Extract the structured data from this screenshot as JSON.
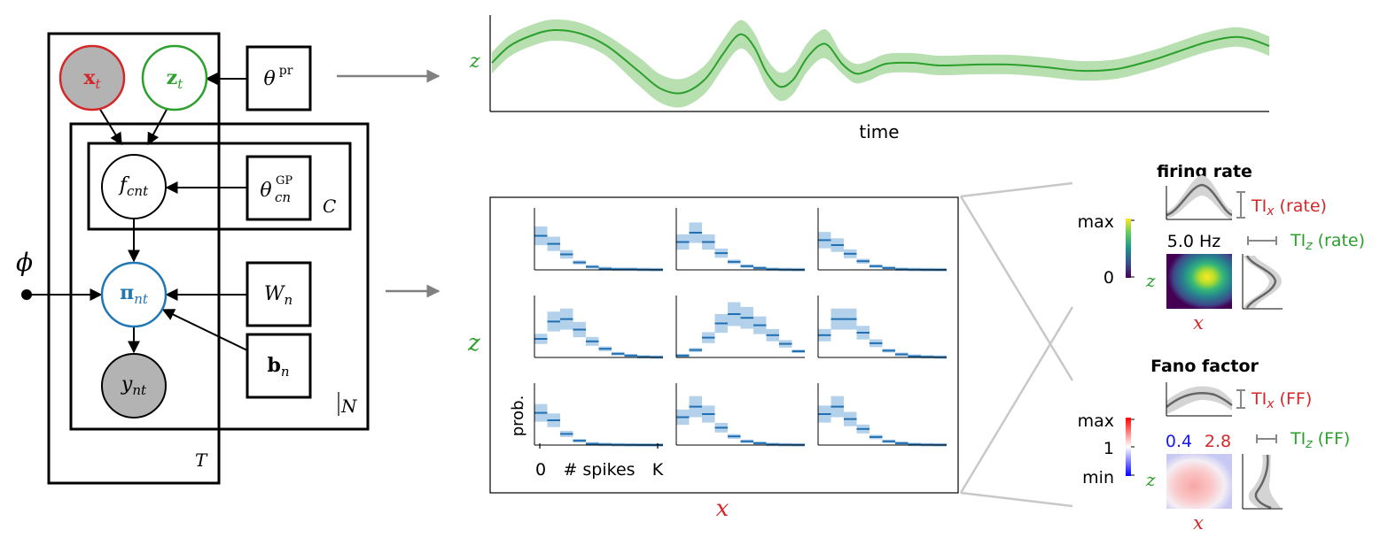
{
  "graphical_model": {
    "nodes": {
      "x": {
        "sym": "x",
        "sub": "t"
      },
      "z": {
        "sym": "z",
        "sub": "t"
      },
      "theta_pr": {
        "sym": "θ",
        "sup": "pr"
      },
      "f": {
        "sym": "f",
        "sub": "cnt"
      },
      "theta_gp": {
        "sym": "θ",
        "sup": "GP",
        "sub": "cn"
      },
      "pi": {
        "sym": "π",
        "sub": "nt"
      },
      "W": {
        "sym": "W",
        "sub": "n"
      },
      "b": {
        "sym": "b",
        "sub": "n"
      },
      "y": {
        "sym": "y",
        "sub": "nt"
      },
      "phi": {
        "sym": "ϕ"
      }
    },
    "plates": {
      "T": "T",
      "C": "C",
      "N": "N"
    }
  },
  "latent_plot": {
    "ylabel": "z",
    "xlabel": "time"
  },
  "grid_plot": {
    "ylabel": "z",
    "xlabel": "x",
    "cell_ylabel": "prob.",
    "tick_zero": "0",
    "tick_mid": "# spikes",
    "tick_k": "K"
  },
  "firing_rate": {
    "title": "firing rate",
    "colorbar_max": "max",
    "colorbar_min": "0",
    "rate_value": "5.0 Hz",
    "z_label": "z",
    "x_label": "x",
    "ti_x_sym": "TI",
    "ti_x_sub": "x",
    "ti_x_note": " (rate)",
    "ti_z_sym": "TI",
    "ti_z_sub": "z",
    "ti_z_note": " (rate)"
  },
  "fano_factor": {
    "title": "Fano factor",
    "colorbar_max": "max",
    "colorbar_mid": "1",
    "colorbar_min": "min",
    "ff_low": "0.4",
    "ff_high": "2.8",
    "z_label": "z",
    "x_label": "x",
    "ti_x_sym": "TI",
    "ti_x_sub": "x",
    "ti_x_note": " (FF)",
    "ti_z_sym": "TI",
    "ti_z_sub": "z",
    "ti_z_note": " (FF)"
  },
  "colors": {
    "x_red": "#d62728",
    "z_green": "#2ca02c",
    "pi_blue": "#1f77b4",
    "band_green": "#b7dfb0",
    "cell_fill": "#b3d1ea",
    "cell_line": "#1f6fb2"
  }
}
